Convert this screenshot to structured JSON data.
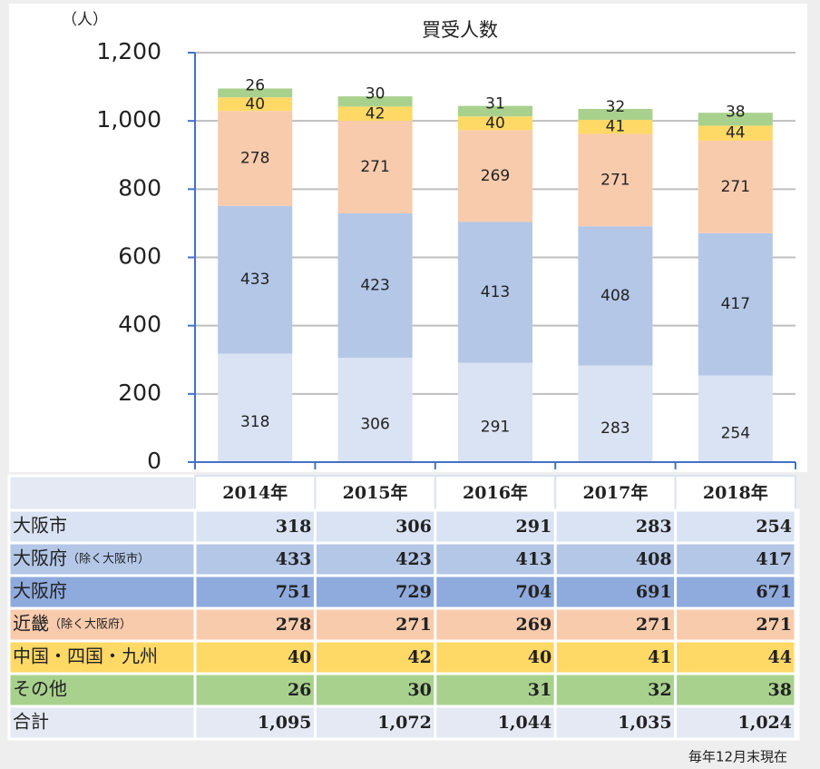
{
  "chart_data": {
    "type": "stacked_bar",
    "title": "買受人数",
    "y_unit": "（人）",
    "categories": [
      "2014年",
      "2015年",
      "2016年",
      "2017年",
      "2018年"
    ],
    "series": [
      {
        "name": "大阪市",
        "color": "#dae3f3",
        "values": [
          318,
          306,
          291,
          283,
          254
        ]
      },
      {
        "name": "大阪府",
        "note": "（除く大阪市）",
        "color": "#b4c7e7",
        "values": [
          433,
          423,
          413,
          408,
          417
        ]
      },
      {
        "name": "近畿",
        "note": "（除く大阪府）",
        "color": "#f8cbad",
        "values": [
          278,
          271,
          269,
          271,
          271
        ]
      },
      {
        "name": "中国・四国・九州",
        "color": "#ffd966",
        "values": [
          40,
          42,
          40,
          41,
          44
        ]
      },
      {
        "name": "その他",
        "color": "#a9d18e",
        "values": [
          26,
          30,
          31,
          32,
          38
        ]
      }
    ],
    "ylim": [
      0,
      1200
    ],
    "yticks": [
      0,
      200,
      400,
      600,
      800,
      {
        "value": 1000,
        "label": "1,000"
      },
      {
        "value": 1200,
        "label": "1,200"
      }
    ],
    "grid": true
  },
  "table": {
    "rows": [
      {
        "label": "大阪府",
        "color": "#8faadc",
        "values": [
          751,
          729,
          704,
          691,
          671
        ]
      },
      {
        "label": "合計",
        "color": "#e4e9f4",
        "values": [
          {
            "value": 1095,
            "label": "1,095"
          },
          {
            "value": 1072,
            "label": "1,072"
          },
          {
            "value": 1044,
            "label": "1,044"
          },
          {
            "value": 1035,
            "label": "1,035"
          },
          {
            "value": 1024,
            "label": "1,024"
          }
        ]
      }
    ]
  },
  "footnote": "毎年12月末現在"
}
